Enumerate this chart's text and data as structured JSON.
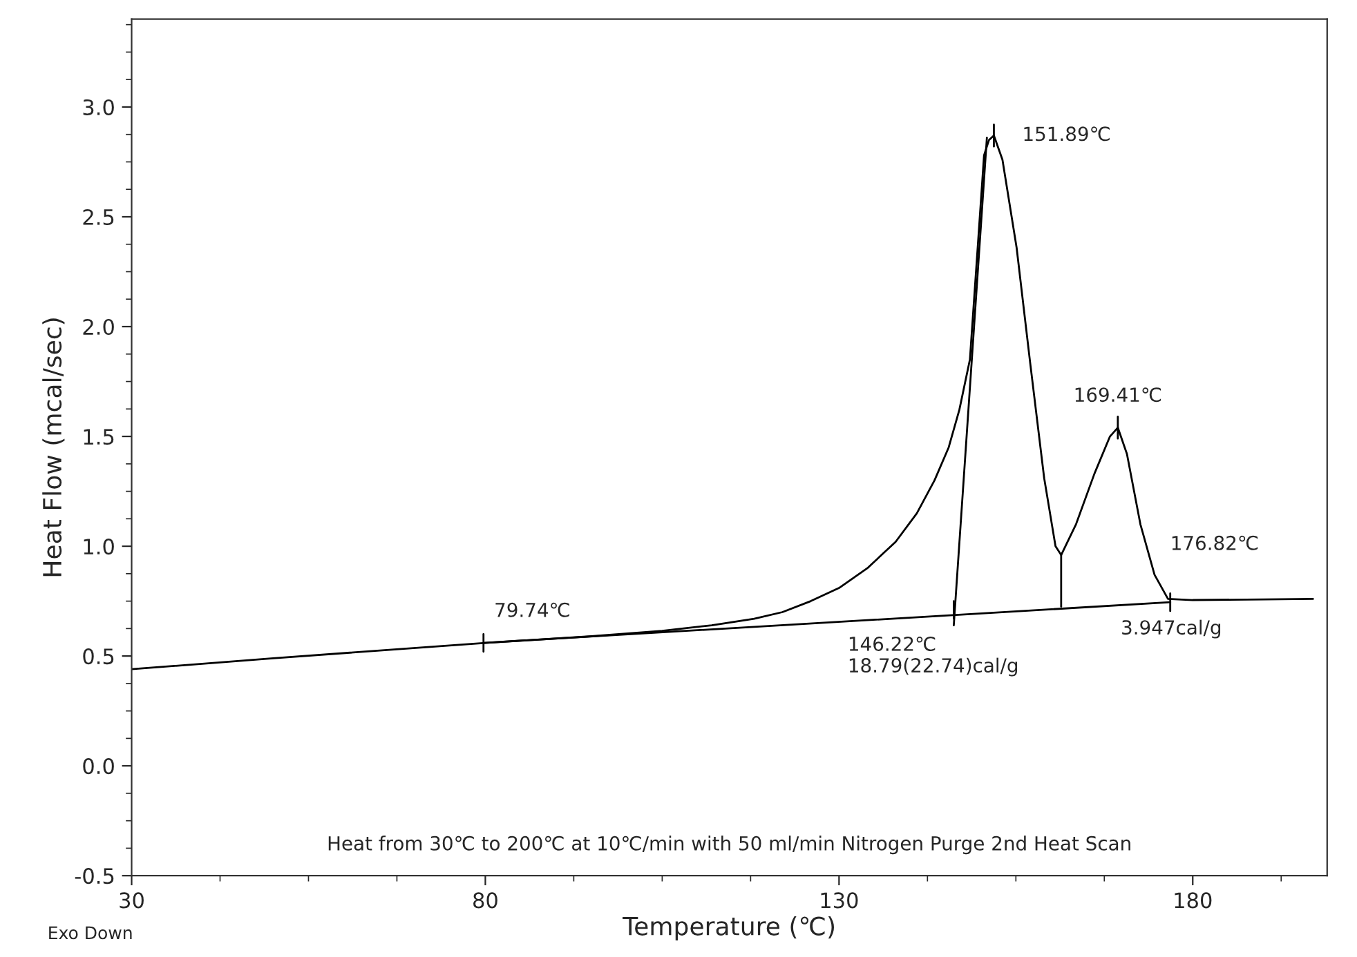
{
  "chart_data": {
    "type": "line",
    "xlabel": "Temperature (℃)",
    "ylabel": "Heat Flow (mcal/sec)",
    "xlim": [
      30,
      199
    ],
    "ylim": [
      -0.5,
      3.4
    ],
    "xticks": [
      30,
      80,
      130,
      180
    ],
    "yticks": [
      {
        "value": -0.5,
        "label": "-0.5"
      },
      {
        "value": 0,
        "label": "0.0"
      },
      0.5,
      {
        "value": 1,
        "label": "1.0"
      },
      1.5,
      {
        "value": 2,
        "label": "2.0"
      },
      2.5,
      {
        "value": 3,
        "label": "3.0"
      }
    ],
    "grid": false,
    "marker": "none",
    "line_style": "solid",
    "series": [
      {
        "color": "#000000",
        "x": [
          30,
          50,
          80,
          95,
          105,
          112,
          118,
          122,
          126,
          130,
          134,
          138,
          141,
          143.5,
          145.5,
          147,
          148.5,
          149.6,
          150.5,
          151.2,
          151.89,
          153.1,
          155.1,
          157,
          159,
          160.6,
          161.4,
          163.5,
          166.1,
          168.3,
          169.41,
          170.7,
          172.6,
          174.6,
          176.5,
          180,
          190,
          197
        ],
        "values": [
          0.44,
          0.49,
          0.56,
          0.59,
          0.615,
          0.64,
          0.67,
          0.7,
          0.75,
          0.81,
          0.9,
          1.02,
          1.15,
          1.3,
          1.45,
          1.62,
          1.85,
          2.36,
          2.78,
          2.85,
          2.87,
          2.76,
          2.36,
          1.84,
          1.31,
          1.0,
          0.96,
          1.1,
          1.33,
          1.5,
          1.54,
          1.42,
          1.1,
          0.87,
          0.76,
          0.755,
          0.758,
          0.76
        ]
      },
      {
        "color": "#000000",
        "x": [
          79.74,
          176.82
        ],
        "values": [
          0.56,
          0.745
        ]
      },
      {
        "color": "#000000",
        "x": [
          146.22,
          150.9
        ],
        "values": [
          0.64,
          2.86
        ]
      },
      {
        "color": "#000000",
        "x": [
          161.4,
          161.4
        ],
        "values": [
          0.96,
          0.725
        ]
      },
      {
        "color": "#000000",
        "x": [
          79.74,
          79.74,
          null,
          146.22,
          146.22,
          null,
          151.89,
          151.89,
          null,
          169.41,
          169.41,
          null,
          176.82,
          176.82
        ],
        "values": [
          0.52,
          0.6,
          null,
          0.67,
          0.75,
          null,
          2.82,
          2.92,
          null,
          1.49,
          1.59,
          null,
          0.705,
          0.785
        ]
      }
    ],
    "annotations": [
      {
        "text": "79.74℃",
        "x": 79.74,
        "y": 0.56
      },
      {
        "text": "146.22℃\n18.79(22.74)cal/g",
        "x": 146.22,
        "y": 0.71
      },
      {
        "text": "151.89℃",
        "x": 151.89,
        "y": 2.87
      },
      {
        "text": "169.41℃",
        "x": 169.41,
        "y": 1.54
      },
      {
        "text": "176.82℃",
        "x": 176.82,
        "y": 0.745
      },
      {
        "text": "3.947cal/g",
        "x": 176.82,
        "y": 0.745
      },
      "Heat from 30℃ to 200℃ at 10℃/min with 50 ml/min Nitrogen Purge 2nd Heat Scan",
      "Exo Down"
    ]
  }
}
